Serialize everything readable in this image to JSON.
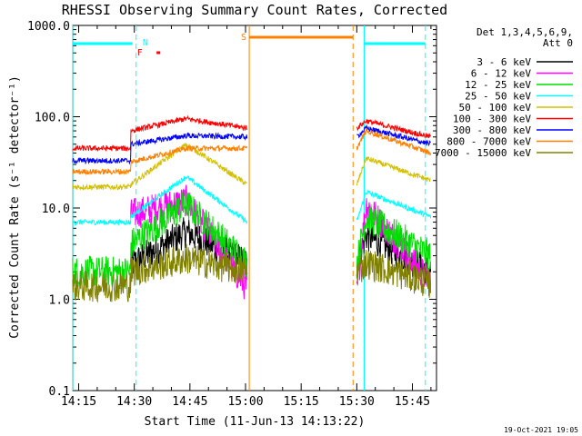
{
  "chart_data": {
    "type": "line",
    "title": "RHESSI Observing Summary Count Rates, Corrected",
    "xlabel": "Start Time (11-Jun-13 14:13:22)",
    "ylabel": "Corrected Count Rate (s⁻¹ detector⁻¹)",
    "y_log": true,
    "ylim": [
      0.1,
      1000
    ],
    "xlim_minutes_of_day": [
      853.4,
      951.5
    ],
    "x_ticks": [
      "14:15",
      "14:30",
      "14:45",
      "15:00",
      "15:15",
      "15:30",
      "15:45"
    ],
    "y_ticks": [
      "0.1",
      "1.0",
      "10.0",
      "100.0",
      "1000.0"
    ],
    "legend_header": [
      "Det 1,3,4,5,6,9,",
      "Att 0"
    ],
    "legend_position": "right",
    "timestamp": "19-Oct-2021 19:05",
    "flag_labels": {
      "N": "N",
      "F": "F",
      "S": "S"
    },
    "series": [
      {
        "name": "3 - 6 keV",
        "color": "#000000",
        "levels": {
          "pre": null,
          "rise": 2.4,
          "peak": 5.5,
          "post": 2.5,
          "post_peak": 5.0,
          "post_end": 2.0
        }
      },
      {
        "name": "6 - 12 keV",
        "color": "#ff00ff",
        "levels": {
          "pre": null,
          "rise": 8.5,
          "peak": 12.0,
          "post": 1.3,
          "post_peak": 11.0,
          "post_end": 1.5
        }
      },
      {
        "name": "12 - 25 keV",
        "color": "#00dd00",
        "levels": {
          "pre": 2.0,
          "rise": 4.0,
          "peak": 11.0,
          "post": 2.5,
          "post_peak": 8.0,
          "post_end": 3.0
        }
      },
      {
        "name": "25 - 50 keV",
        "color": "#00ffff",
        "levels": {
          "pre": 7.0,
          "rise": 8.0,
          "peak": 22.0,
          "post": 7.0,
          "post_peak": 15.0,
          "post_end": 8.0
        }
      },
      {
        "name": "50 - 100 keV",
        "color": "#d4c000",
        "levels": {
          "pre": 17.0,
          "rise": 18.0,
          "peak": 50.0,
          "post": 18.0,
          "post_peak": 35.0,
          "post_end": 20.0
        }
      },
      {
        "name": "100 - 300 keV",
        "color": "#ff0000",
        "levels": {
          "pre": 45.0,
          "rise": 70.0,
          "peak": 95.0,
          "post": 75.0,
          "post_peak": 90.0,
          "post_end": 60.0
        }
      },
      {
        "name": "300 - 800 keV",
        "color": "#0000ff",
        "levels": {
          "pre": 33.0,
          "rise": 50.0,
          "peak": 62.0,
          "post": 60.0,
          "post_peak": 75.0,
          "post_end": 50.0
        }
      },
      {
        "name": "800 - 7000 keV",
        "color": "#ff8000",
        "levels": {
          "pre": 25.0,
          "rise": 32.0,
          "peak": 45.0,
          "post": 45.0,
          "post_peak": 70.0,
          "post_end": 40.0
        }
      },
      {
        "name": "7000 - 15000 keV",
        "color": "#808000",
        "levels": {
          "pre": 1.4,
          "rise": 2.0,
          "peak": 2.8,
          "post": 2.0,
          "post_peak": 2.5,
          "post_end": 1.5
        }
      }
    ],
    "vertical_markers": [
      {
        "time": "14:13:22",
        "color": "#00ffff",
        "style": "solid"
      },
      {
        "time": "14:30:30",
        "color": "#00ffff",
        "style": "dashed"
      },
      {
        "time": "15:01:00",
        "color": "#ff8000",
        "style": "solid"
      },
      {
        "time": "15:29:00",
        "color": "#ff8000",
        "style": "dashed"
      },
      {
        "time": "15:32:00",
        "color": "#00ffff",
        "style": "solid"
      },
      {
        "time": "15:48:30",
        "color": "#00ffff",
        "style": "dashed"
      }
    ]
  }
}
